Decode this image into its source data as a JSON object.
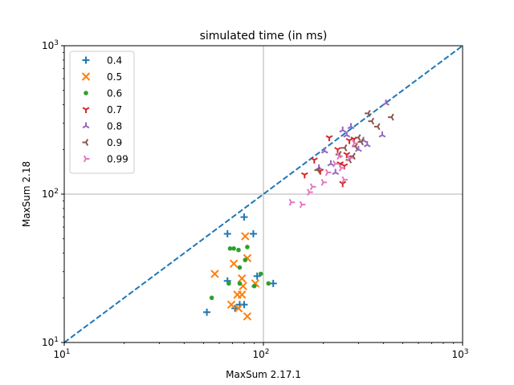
{
  "chart_data": {
    "type": "scatter",
    "title": "simulated time (in ms)",
    "xlabel": "MaxSum 2.17.1",
    "ylabel": "MaxSum 2.18",
    "xscale": "log",
    "yscale": "log",
    "xlim": [
      10,
      1000
    ],
    "ylim": [
      10,
      1000
    ],
    "x_ticks": [
      {
        "base": "10",
        "exp": "1"
      },
      {
        "base": "10",
        "exp": "2"
      },
      {
        "base": "10",
        "exp": "3"
      }
    ],
    "y_ticks": [
      {
        "base": "10",
        "exp": "1"
      },
      {
        "base": "10",
        "exp": "2"
      },
      {
        "base": "10",
        "exp": "3"
      }
    ],
    "grid_lines": [
      100
    ],
    "reference_line": {
      "type": "y=x",
      "style": "dashed",
      "color": "#1f77b4"
    },
    "legend_position": "top-left",
    "series": [
      {
        "name": "0.4",
        "marker": "plus",
        "color": "#1f77b4",
        "x": [
          80,
          66,
          89,
          93,
          112,
          66,
          72,
          76,
          80,
          52
        ],
        "y": [
          70,
          54,
          54,
          28,
          25,
          26,
          17,
          18,
          18,
          16
        ]
      },
      {
        "name": "0.5",
        "marker": "x",
        "color": "#ff7f0e",
        "x": [
          81,
          57,
          71,
          83,
          78,
          79,
          91,
          74,
          78,
          69,
          75,
          83
        ],
        "y": [
          52,
          29,
          34,
          37,
          27,
          24,
          25,
          21,
          21,
          18,
          17,
          15
        ]
      },
      {
        "name": "0.6",
        "marker": "dot",
        "color": "#2ca02c",
        "x": [
          68,
          71,
          75,
          83,
          81,
          76,
          97,
          67,
          76,
          90,
          106,
          55
        ],
        "y": [
          43,
          43,
          42,
          44,
          36,
          32,
          29,
          25,
          25,
          24,
          25,
          20
        ]
      },
      {
        "name": "0.7",
        "marker": "tri_down",
        "color": "#d62728",
        "x": [
          161,
          180,
          193,
          214,
          236,
          243,
          255,
          262,
          270,
          285,
          250
        ],
        "y": [
          135,
          170,
          143,
          240,
          200,
          160,
          155,
          185,
          230,
          235,
          118
        ]
      },
      {
        "name": "0.8",
        "marker": "tri_up",
        "color": "#9467bd",
        "x": [
          190,
          203,
          218,
          230,
          250,
          262,
          275,
          300,
          318,
          332,
          395,
          412
        ],
        "y": [
          150,
          195,
          160,
          140,
          270,
          250,
          285,
          200,
          230,
          215,
          250,
          410
        ]
      },
      {
        "name": "0.9",
        "marker": "tri_left",
        "color": "#8c564b",
        "x": [
          188,
          240,
          256,
          270,
          282,
          290,
          300,
          310,
          336,
          350,
          375,
          440
        ],
        "y": [
          145,
          185,
          205,
          170,
          180,
          210,
          240,
          225,
          350,
          310,
          285,
          330
        ]
      },
      {
        "name": "0.99",
        "marker": "tri_right",
        "color": "#e377c2",
        "x": [
          138,
          156,
          170,
          176,
          200,
          210,
          229,
          240,
          246,
          254,
          270,
          286
        ],
        "y": [
          88,
          85,
          103,
          112,
          120,
          140,
          160,
          180,
          150,
          125,
          175,
          220
        ]
      }
    ]
  }
}
